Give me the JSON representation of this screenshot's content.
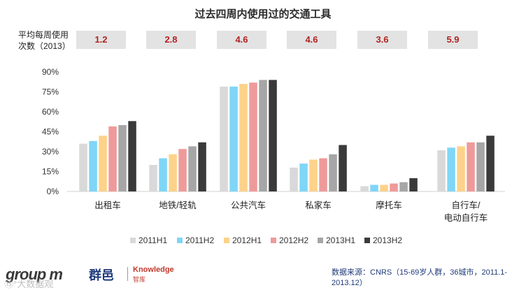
{
  "chart_data": {
    "type": "bar",
    "title": "过去四周内使用过的交通工具",
    "categories": [
      "出租车",
      "地铁/轻轨",
      "公共汽车",
      "私家车",
      "摩托车",
      "自行车/\n电动自行车"
    ],
    "series": [
      {
        "name": "2011H1",
        "color": "#d9d9d9",
        "values": [
          36,
          20,
          79,
          18,
          4,
          31
        ]
      },
      {
        "name": "2011H2",
        "color": "#7fd6f7",
        "values": [
          38,
          25,
          79,
          21,
          5,
          33
        ]
      },
      {
        "name": "2012H1",
        "color": "#fdd28a",
        "values": [
          42,
          28,
          81,
          24,
          5,
          34
        ]
      },
      {
        "name": "2012H2",
        "color": "#ef9a9a",
        "values": [
          49,
          32,
          82,
          25,
          6,
          37
        ]
      },
      {
        "name": "2013H1",
        "color": "#a6a6a6",
        "values": [
          50,
          34,
          84,
          28,
          7,
          37
        ]
      },
      {
        "name": "2013H2",
        "color": "#3a3a3a",
        "values": [
          53,
          37,
          84,
          35,
          10,
          42
        ]
      }
    ],
    "ylim": [
      0,
      90
    ],
    "yticks": [
      0,
      15,
      30,
      45,
      60,
      75,
      90
    ],
    "ytick_labels": [
      "0%",
      "15%",
      "30%",
      "45%",
      "60%",
      "75%",
      "90%"
    ],
    "xlabel": "",
    "ylabel": "",
    "legend_position": "bottom"
  },
  "frequency": {
    "label_line1": "平均每周使用",
    "label_line2": "次数（2013）",
    "values": [
      "1.2",
      "2.8",
      "4.6",
      "4.6",
      "3.6",
      "5.9"
    ]
  },
  "footer": {
    "brand_logo": "group m",
    "brand_cn": "群邑",
    "brand_en": "Knowledge",
    "brand_en2": "智库",
    "source_line1": "数据来源：CNRS（15-69岁人群，36城市，2011.1-",
    "source_line2": "2013.12）",
    "watermark": "⑮°大数据观"
  }
}
